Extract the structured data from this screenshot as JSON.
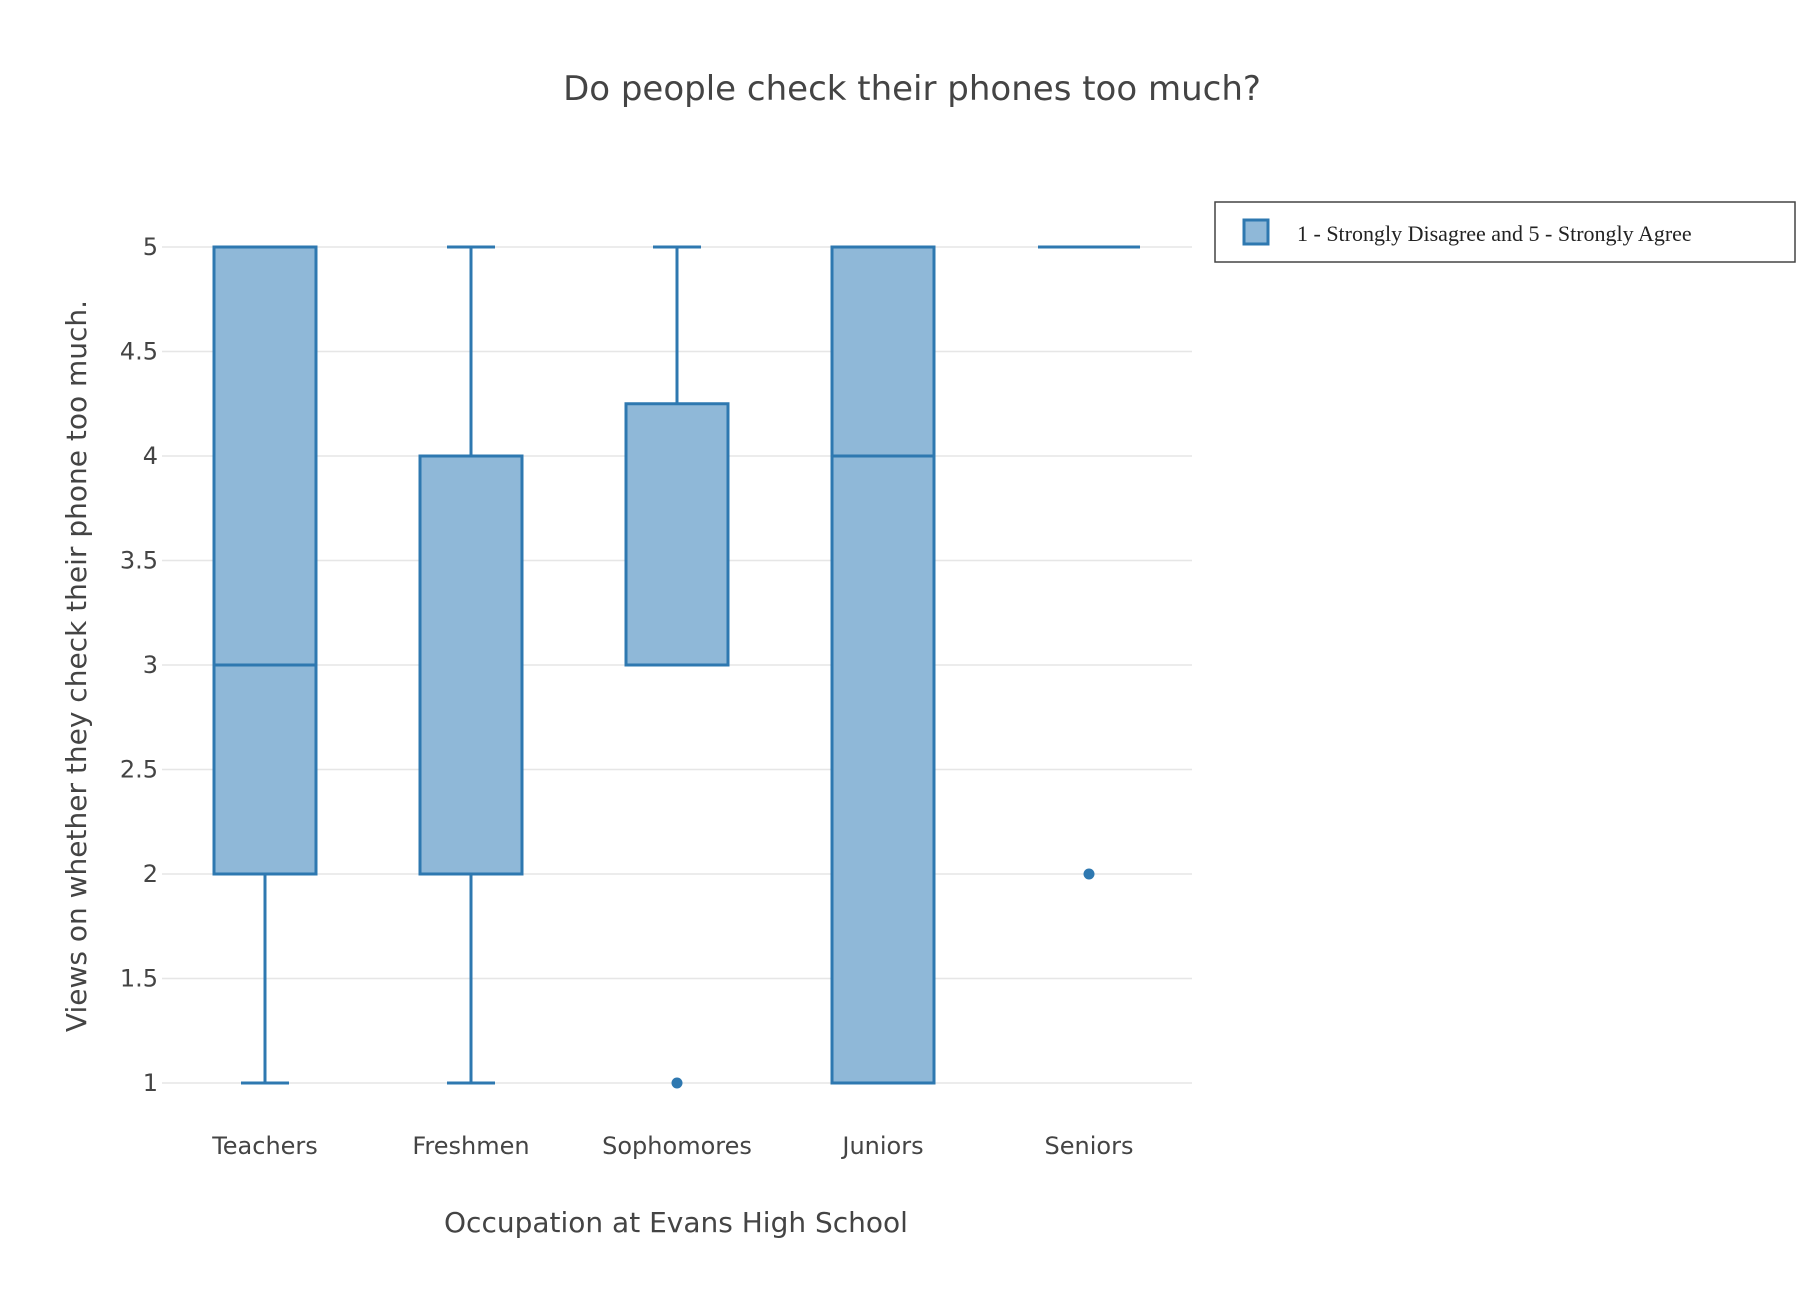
{
  "chart_data": {
    "type": "box",
    "title": "Do people check their phones too much?",
    "xlabel": "Occupation at  Evans High School",
    "ylabel": "Views on whether they check their phone too much.",
    "ylim": [
      1,
      5
    ],
    "ytick_values": [
      1,
      1.5,
      2,
      2.5,
      3,
      3.5,
      4,
      4.5,
      5
    ],
    "ytick_labels": [
      "1",
      "1.5",
      "2",
      "2.5",
      "3",
      "3.5",
      "4",
      "4.5",
      "5"
    ],
    "grid": true,
    "legend_position": "top-right",
    "categories": [
      "Teachers",
      "Freshmen",
      "Sophomores",
      "Juniors",
      "Seniors"
    ],
    "series": [
      {
        "name": "1 - Strongly Disagree and 5 - Strongly Agree",
        "color": "#2e78b0",
        "fill": "#8fb8d8",
        "boxes": [
          {
            "category": "Teachers",
            "min": 1,
            "q1": 2,
            "median": 3,
            "q3": 5,
            "max": 5,
            "outliers": []
          },
          {
            "category": "Freshmen",
            "min": 1,
            "q1": 2,
            "median": 4,
            "q3": 4,
            "max": 5,
            "outliers": []
          },
          {
            "category": "Sophomores",
            "min": 3,
            "q1": 3,
            "median": 3,
            "q3": 4.25,
            "max": 5,
            "outliers": [
              1
            ]
          },
          {
            "category": "Juniors",
            "min": 1,
            "q1": 1,
            "median": 4,
            "q3": 5,
            "max": 5,
            "outliers": []
          },
          {
            "category": "Seniors",
            "min": 5,
            "q1": 5,
            "median": 5,
            "q3": 5,
            "max": 5,
            "outliers": [
              2
            ]
          }
        ]
      }
    ]
  }
}
